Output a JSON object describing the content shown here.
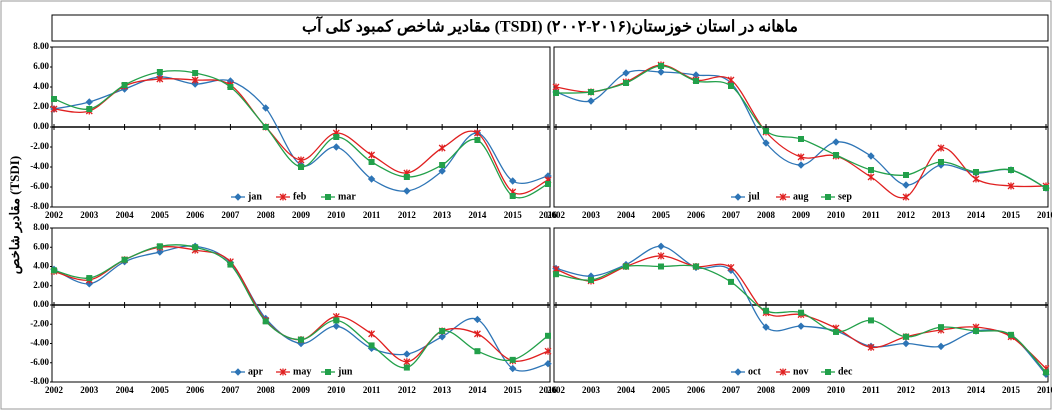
{
  "title": "مقادیر شاخص کمبود کلی آب (TSDI) ماهانه در استان خوزستان(۲۰۱۶-۲۰۰۲)",
  "y_label": "مقادیر شاخص (TSDI)",
  "chart_data": [
    {
      "type": "line",
      "legend": "bottom-center",
      "x": [
        2002,
        2003,
        2004,
        2005,
        2006,
        2007,
        2008,
        2009,
        2010,
        2011,
        2012,
        2013,
        2014,
        2015,
        2016
      ],
      "xlim": [
        2002,
        2016
      ],
      "xticks": [
        2002,
        2003,
        2004,
        2005,
        2006,
        2007,
        2008,
        2009,
        2010,
        2011,
        2012,
        2013,
        2014,
        2015,
        2016
      ],
      "ylim": [
        -8,
        8
      ],
      "yticks": [
        {
          "value": 8,
          "label": "8.00"
        },
        {
          "value": 6,
          "label": "6.00"
        },
        {
          "value": 4,
          "label": "4.00"
        },
        {
          "value": 2,
          "label": "2.00"
        },
        {
          "value": 0,
          "label": "0.00"
        },
        {
          "value": -2,
          "label": "-2.00"
        },
        {
          "value": -4,
          "label": "-4.00"
        },
        {
          "value": -6,
          "label": "-6.00"
        },
        {
          "value": -8,
          "label": "-8.00"
        }
      ],
      "series": [
        {
          "name": "jan",
          "color": "#2e75b6",
          "marker": "diamond",
          "values": [
            1.8,
            2.5,
            3.8,
            5.0,
            4.3,
            4.6,
            1.9,
            -3.8,
            -2.0,
            -5.2,
            -6.4,
            -4.4,
            -0.6,
            -5.4,
            -4.9
          ]
        },
        {
          "name": "feb",
          "color": "#e02020",
          "marker": "star",
          "values": [
            1.8,
            1.6,
            4.1,
            4.8,
            4.7,
            4.2,
            0.0,
            -3.3,
            -0.6,
            -2.8,
            -4.6,
            -2.1,
            -0.6,
            -6.5,
            -5.3
          ]
        },
        {
          "name": "mar",
          "color": "#22a04a",
          "marker": "square",
          "values": [
            2.8,
            1.8,
            4.2,
            5.5,
            5.4,
            4.0,
            0.0,
            -4.0,
            -1.0,
            -3.5,
            -5.0,
            -3.8,
            -1.3,
            -6.9,
            -5.7
          ]
        }
      ]
    },
    {
      "type": "line",
      "legend": "bottom-center",
      "x": [
        2002,
        2003,
        2004,
        2005,
        2006,
        2007,
        2008,
        2009,
        2010,
        2011,
        2012,
        2013,
        2014,
        2015,
        2016
      ],
      "xlim": [
        2002,
        2016
      ],
      "xticks": [
        2002,
        2003,
        2004,
        2005,
        2006,
        2007,
        2008,
        2009,
        2010,
        2011,
        2012,
        2013,
        2014,
        2015,
        2016
      ],
      "ylim": [
        -8,
        8
      ],
      "series": [
        {
          "name": "jul",
          "color": "#2e75b6",
          "marker": "diamond",
          "values": [
            3.5,
            2.6,
            5.4,
            5.5,
            5.2,
            4.4,
            -1.6,
            -3.8,
            -1.5,
            -2.9,
            -5.8,
            -3.8,
            -4.6,
            -4.3,
            -6.1
          ]
        },
        {
          "name": "aug",
          "color": "#e02020",
          "marker": "star",
          "values": [
            4.0,
            3.5,
            4.5,
            6.2,
            4.7,
            4.7,
            -0.5,
            -3.0,
            -2.9,
            -5.0,
            -7.0,
            -2.1,
            -5.2,
            -5.9,
            -5.9
          ]
        },
        {
          "name": "sep",
          "color": "#22a04a",
          "marker": "square",
          "values": [
            3.4,
            3.5,
            4.4,
            6.1,
            4.6,
            4.1,
            -0.4,
            -1.2,
            -2.8,
            -4.3,
            -4.8,
            -3.5,
            -4.5,
            -4.3,
            -6.1
          ]
        }
      ]
    },
    {
      "type": "line",
      "legend": "bottom-center",
      "x": [
        2002,
        2003,
        2004,
        2005,
        2006,
        2007,
        2008,
        2009,
        2010,
        2011,
        2012,
        2013,
        2014,
        2015,
        2016
      ],
      "xlim": [
        2002,
        2016
      ],
      "xticks": [
        2002,
        2003,
        2004,
        2005,
        2006,
        2007,
        2008,
        2009,
        2010,
        2011,
        2012,
        2013,
        2014,
        2015,
        2016
      ],
      "ylim": [
        -8,
        8
      ],
      "yticks": [
        {
          "value": 8,
          "label": "8.00"
        },
        {
          "value": 6,
          "label": "6.00"
        },
        {
          "value": 4,
          "label": "4.00"
        },
        {
          "value": 2,
          "label": "2.00"
        },
        {
          "value": 0,
          "label": "0.00"
        },
        {
          "value": -2,
          "label": "-2.00"
        },
        {
          "value": -4,
          "label": "-4.00"
        },
        {
          "value": -6,
          "label": "-6.00"
        },
        {
          "value": -8,
          "label": "-8.00"
        }
      ],
      "series": [
        {
          "name": "apr",
          "color": "#2e75b6",
          "marker": "diamond",
          "values": [
            3.7,
            2.2,
            4.5,
            5.5,
            6.1,
            4.4,
            -1.4,
            -4.0,
            -2.2,
            -4.5,
            -5.1,
            -3.3,
            -1.5,
            -6.6,
            -6.1
          ]
        },
        {
          "name": "may",
          "color": "#e02020",
          "marker": "star",
          "values": [
            3.5,
            2.6,
            4.7,
            6.0,
            5.7,
            4.5,
            -1.6,
            -3.6,
            -1.2,
            -3.0,
            -5.9,
            -2.7,
            -3.0,
            -5.8,
            -4.8
          ]
        },
        {
          "name": "jun",
          "color": "#22a04a",
          "marker": "square",
          "values": [
            3.6,
            2.8,
            4.7,
            6.1,
            6.0,
            4.2,
            -1.7,
            -3.6,
            -1.6,
            -4.2,
            -6.5,
            -2.7,
            -4.8,
            -5.7,
            -3.2
          ]
        }
      ]
    },
    {
      "type": "line",
      "legend": "bottom-center",
      "x": [
        2002,
        2003,
        2004,
        2005,
        2006,
        2007,
        2008,
        2009,
        2010,
        2011,
        2012,
        2013,
        2014,
        2015,
        2016
      ],
      "xlim": [
        2002,
        2016
      ],
      "xticks": [
        2002,
        2003,
        2004,
        2005,
        2006,
        2007,
        2008,
        2009,
        2010,
        2011,
        2012,
        2013,
        2014,
        2015,
        2016
      ],
      "ylim": [
        -8,
        8
      ],
      "series": [
        {
          "name": "oct",
          "color": "#2e75b6",
          "marker": "diamond",
          "values": [
            3.8,
            3.0,
            4.2,
            6.1,
            3.9,
            3.6,
            -2.3,
            -2.2,
            -2.7,
            -4.3,
            -4.0,
            -4.3,
            -2.7,
            -3.2,
            -7.2
          ]
        },
        {
          "name": "nov",
          "color": "#e02020",
          "marker": "star",
          "values": [
            3.7,
            2.5,
            4.0,
            5.1,
            4.0,
            3.9,
            -0.8,
            -1.0,
            -2.4,
            -4.4,
            -3.3,
            -2.6,
            -2.3,
            -3.3,
            -6.6
          ]
        },
        {
          "name": "dec",
          "color": "#22a04a",
          "marker": "square",
          "values": [
            3.2,
            2.6,
            4.0,
            4.0,
            4.0,
            2.4,
            -0.6,
            -0.8,
            -2.8,
            -1.6,
            -3.3,
            -2.3,
            -2.7,
            -3.1,
            -7.0
          ]
        }
      ]
    }
  ]
}
